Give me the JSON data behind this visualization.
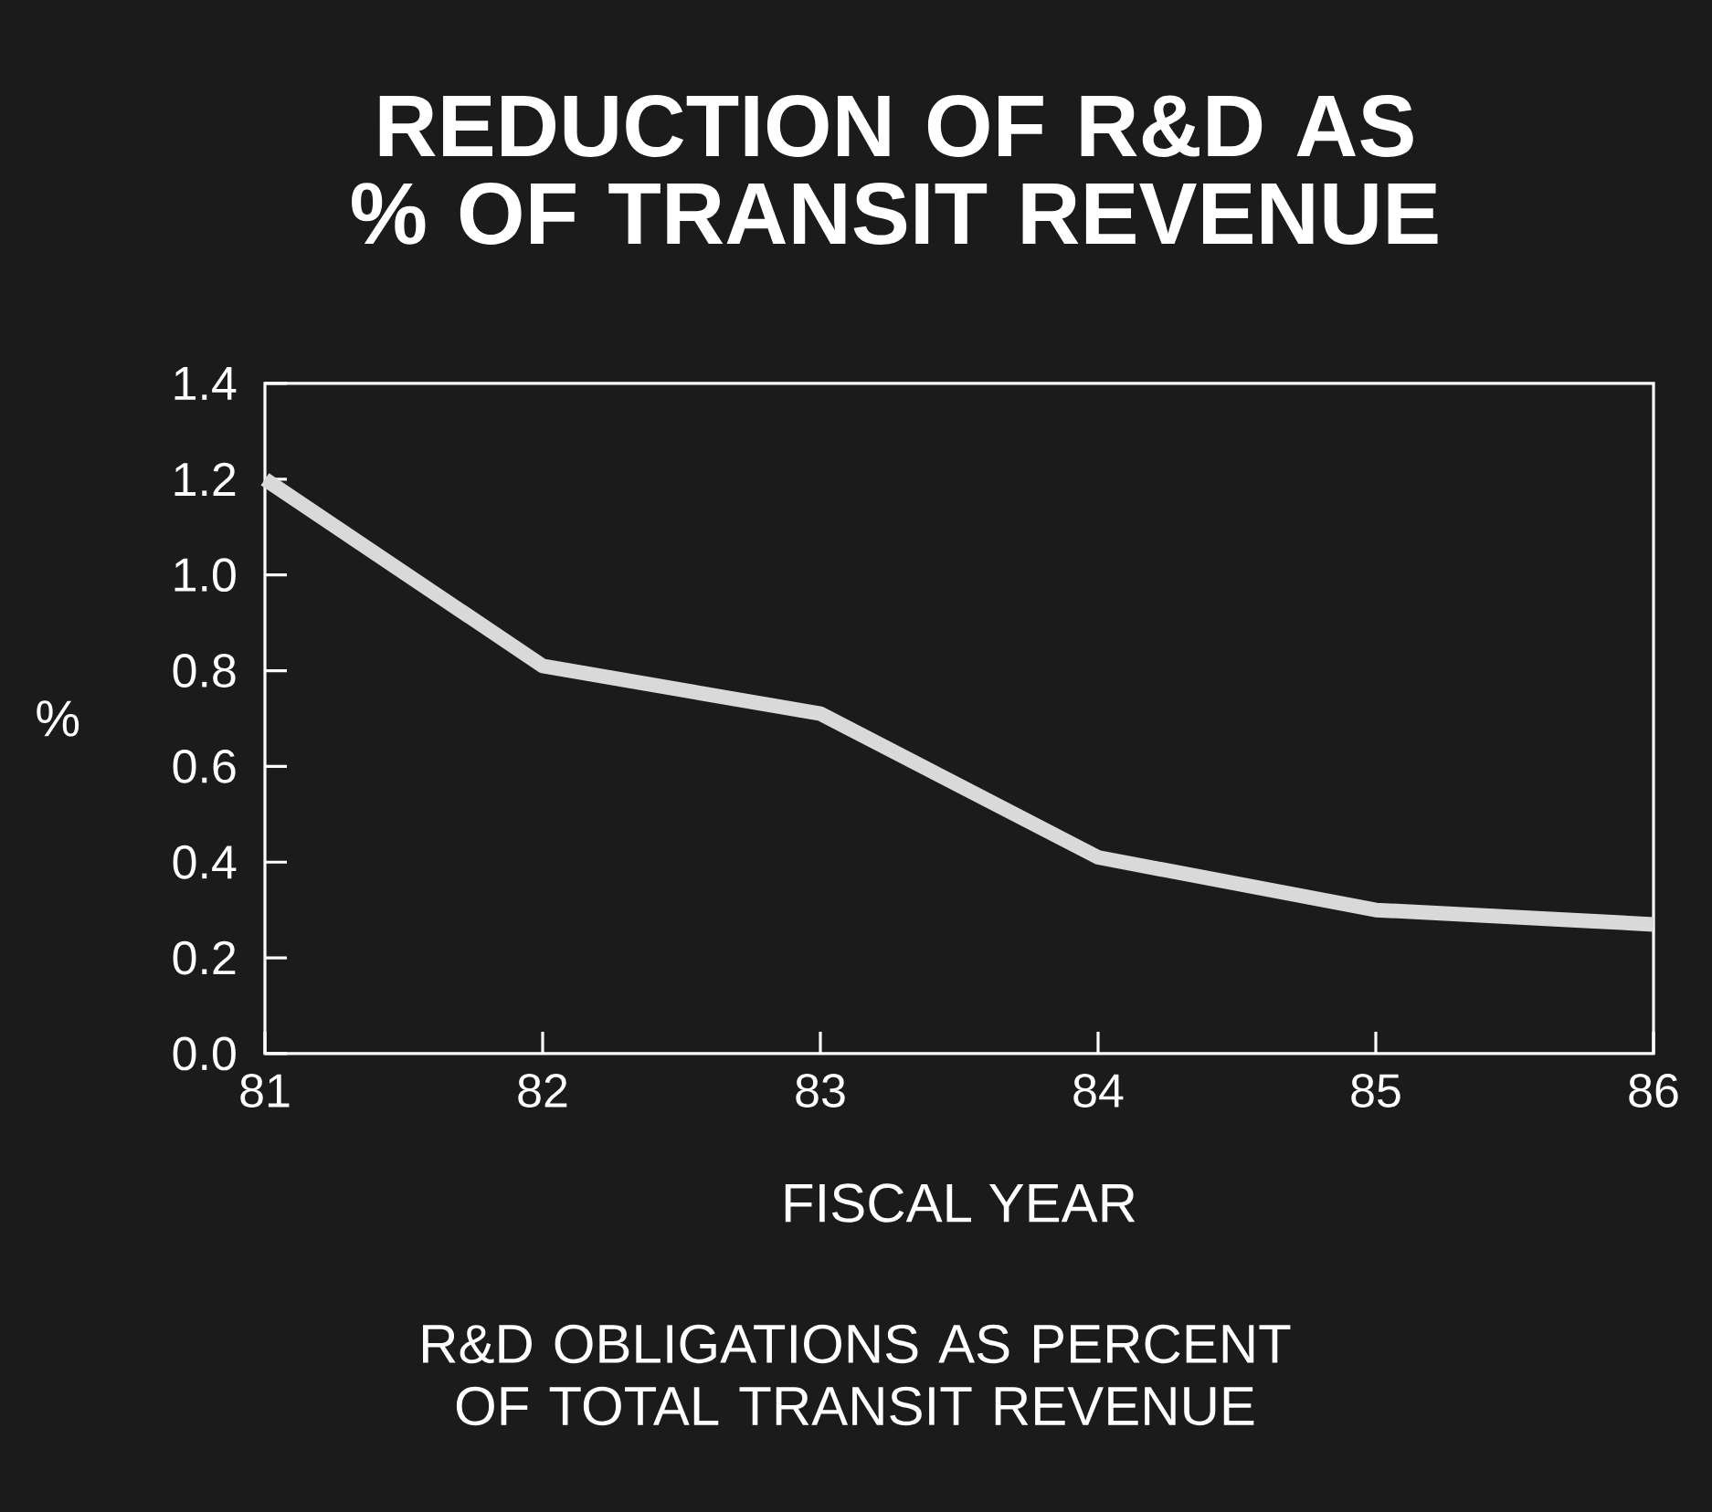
{
  "chart_data": {
    "type": "line",
    "title": "REDUCTION OF R&D AS % OF TRANSIT REVENUE",
    "xlabel": "FISCAL YEAR",
    "ylabel": "%",
    "annotations": [
      "R&D OBLIGATIONS AS PERCENT OF TOTAL TRANSIT REVENUE"
    ],
    "x": [
      81,
      82,
      83,
      84,
      85,
      86
    ],
    "series": [
      {
        "color": "#d9d9d9",
        "values": [
          1.2,
          0.81,
          0.71,
          0.41,
          0.3,
          0.27
        ]
      }
    ],
    "xlim": [
      81,
      86
    ],
    "xticks": [
      81,
      82,
      83,
      84,
      85,
      86
    ],
    "ylim": [
      0,
      1.4
    ],
    "yticks": [
      {
        "value": 0,
        "label": "0.0"
      },
      {
        "value": 0.2,
        "label": "0.2"
      },
      {
        "value": 0.4,
        "label": "0.4"
      },
      {
        "value": 0.6,
        "label": "0.6"
      },
      {
        "value": 0.8,
        "label": "0.8"
      },
      {
        "value": 1.0,
        "label": "1.0"
      },
      {
        "value": 1.2,
        "label": "1.2"
      },
      {
        "value": 1.4,
        "label": "1.4"
      }
    ]
  }
}
